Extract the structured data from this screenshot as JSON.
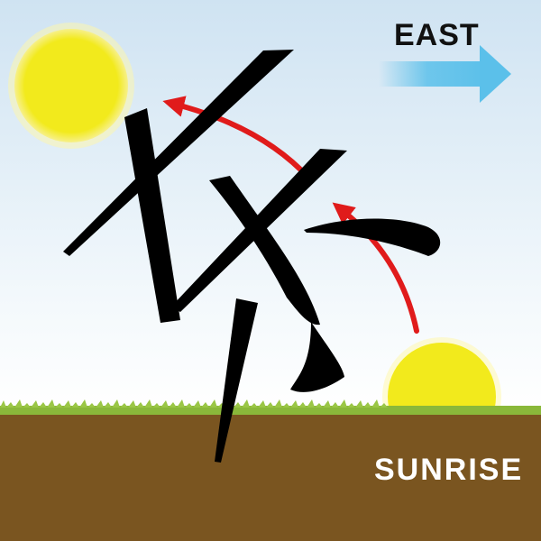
{
  "labels": {
    "east": "EAST",
    "sunrise": "SUNRISE"
  },
  "colors": {
    "sky_top": "#cfe3f2",
    "sky_bottom": "#ffffff",
    "sun": "#f2ea1c",
    "sun_glow": "#fff7a8",
    "grass": "#8ab83a",
    "ground": "#7a5520",
    "arrow_red": "#e01b1b",
    "east_arrow": "#5bc0ea",
    "glyph": "#000000"
  },
  "icons": {
    "upper_sun": "sun-icon",
    "rising_sun": "sun-icon",
    "east_arrow": "arrow-right-icon",
    "path_arrow": "curved-arrow-icon",
    "glyph": "chinese-character-glyph"
  }
}
